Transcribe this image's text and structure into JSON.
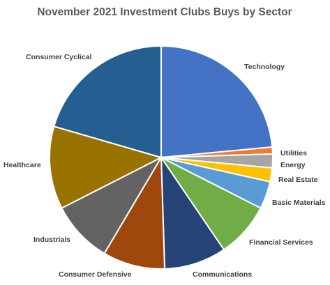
{
  "chart_data": {
    "type": "pie",
    "title": "November 2021 Investment Clubs Buys by Sector",
    "legend": "none (category labels placed outside slices)",
    "slices": [
      {
        "label": "Technology",
        "value": 23.5,
        "color": "#4472C4"
      },
      {
        "label": "Utilities",
        "value": 1.0,
        "color": "#ED7D31"
      },
      {
        "label": "Energy",
        "value": 2.0,
        "color": "#A5A5A5"
      },
      {
        "label": "Real Estate",
        "value": 2.0,
        "color": "#FFC000"
      },
      {
        "label": "Basic Materials",
        "value": 4.0,
        "color": "#5B9BD5"
      },
      {
        "label": "Financial Services",
        "value": 8.0,
        "color": "#70AD47"
      },
      {
        "label": "Communications",
        "value": 9.0,
        "color": "#264478"
      },
      {
        "label": "Consumer Defensive",
        "value": 9.0,
        "color": "#9E480E"
      },
      {
        "label": "Industrials",
        "value": 9.0,
        "color": "#636363"
      },
      {
        "label": "Healthcare",
        "value": 12.0,
        "color": "#997300"
      },
      {
        "label": "Consumer Cyclical",
        "value": 20.5,
        "color": "#255E91"
      }
    ]
  }
}
